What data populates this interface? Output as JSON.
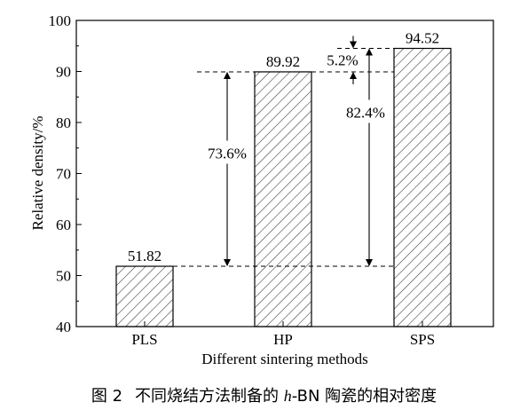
{
  "chart_data": {
    "type": "bar",
    "categories": [
      "PLS",
      "HP",
      "SPS"
    ],
    "values": [
      51.82,
      89.92,
      94.52
    ],
    "value_labels": [
      "51.82",
      "89.92",
      "94.52"
    ],
    "xlabel": "Different sintering methods",
    "ylabel": "Relative density/%",
    "ylim": [
      40,
      100
    ],
    "yticks": [
      40,
      50,
      60,
      70,
      80,
      90,
      100
    ],
    "bar_fill": "hatched",
    "grid": false,
    "annotations": [
      {
        "text": "73.6%",
        "from": 51.82,
        "to": 89.92,
        "category": "HP"
      },
      {
        "text": "82.4%",
        "from": 51.82,
        "to": 94.52,
        "category": "SPS"
      },
      {
        "text": "5.2%",
        "from": 89.92,
        "to": 94.52,
        "category": "SPS"
      }
    ]
  },
  "caption": {
    "number": "图 2",
    "text_before": "不同烧结方法制备的 ",
    "italic": "h",
    "text_after": "-BN 陶瓷的相对密度"
  }
}
